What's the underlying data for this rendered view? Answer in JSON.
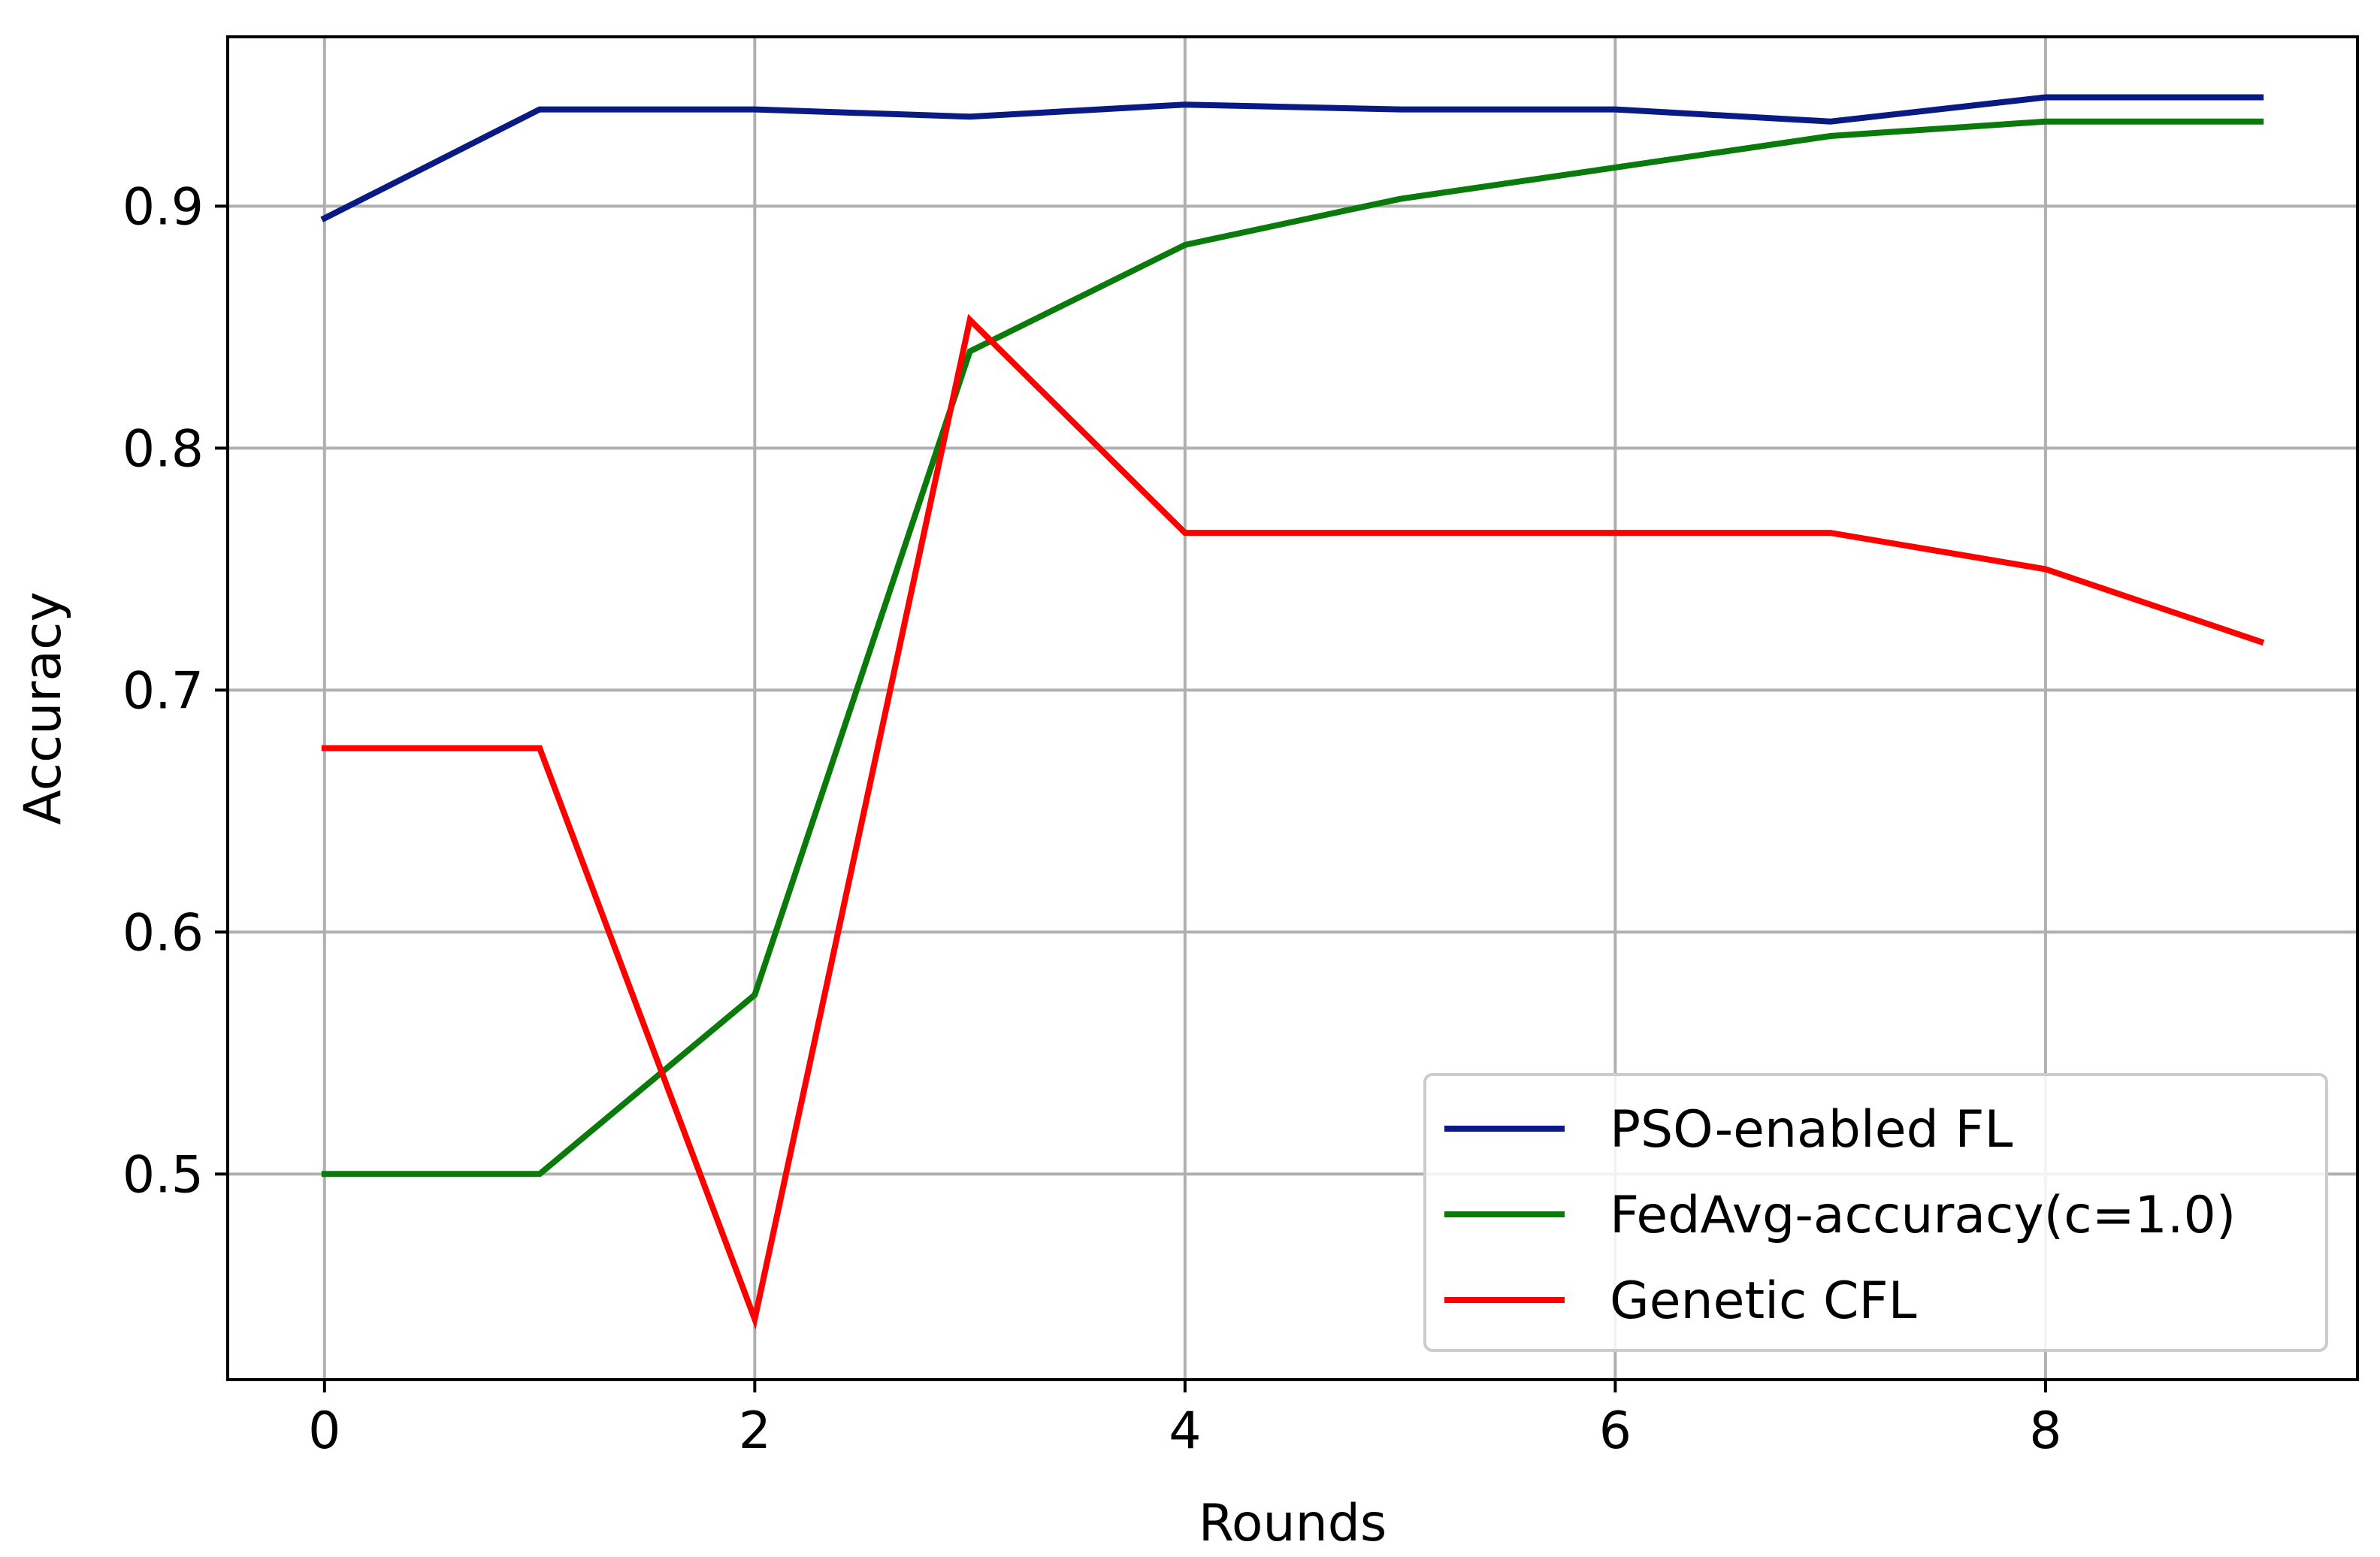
{
  "chart_data": {
    "type": "line",
    "title": "",
    "xlabel": "Rounds",
    "ylabel": "Accuracy",
    "x": [
      0,
      1,
      2,
      3,
      4,
      5,
      6,
      7,
      8,
      9
    ],
    "xlim": [
      -0.45,
      9.45
    ],
    "ylim": [
      0.415,
      0.97
    ],
    "xticks": [
      0,
      2,
      4,
      6,
      8
    ],
    "xtick_labels": [
      "0",
      "2",
      "4",
      "6",
      "8"
    ],
    "yticks": [
      0.5,
      0.6,
      0.7,
      0.8,
      0.9
    ],
    "ytick_labels": [
      "0.5",
      "0.6",
      "0.7",
      "0.8",
      "0.9"
    ],
    "grid": true,
    "legend_position": "bottom-right",
    "series": [
      {
        "name": "PSO-enabled FL",
        "color": "#0a1a85",
        "values": [
          0.895,
          0.94,
          0.94,
          0.937,
          0.942,
          0.94,
          0.94,
          0.935,
          0.945,
          0.945
        ]
      },
      {
        "name": "FedAvg-accuracy(c=1.0)",
        "color": "#0a7a0a",
        "values": [
          0.5,
          0.5,
          0.574,
          0.84,
          0.884,
          0.903,
          0.916,
          0.929,
          0.935,
          0.935
        ]
      },
      {
        "name": "Genetic CFL",
        "color": "#ff0000",
        "values": [
          0.676,
          0.676,
          0.44,
          0.853,
          0.765,
          0.765,
          0.765,
          0.765,
          0.75,
          0.72
        ]
      }
    ]
  }
}
